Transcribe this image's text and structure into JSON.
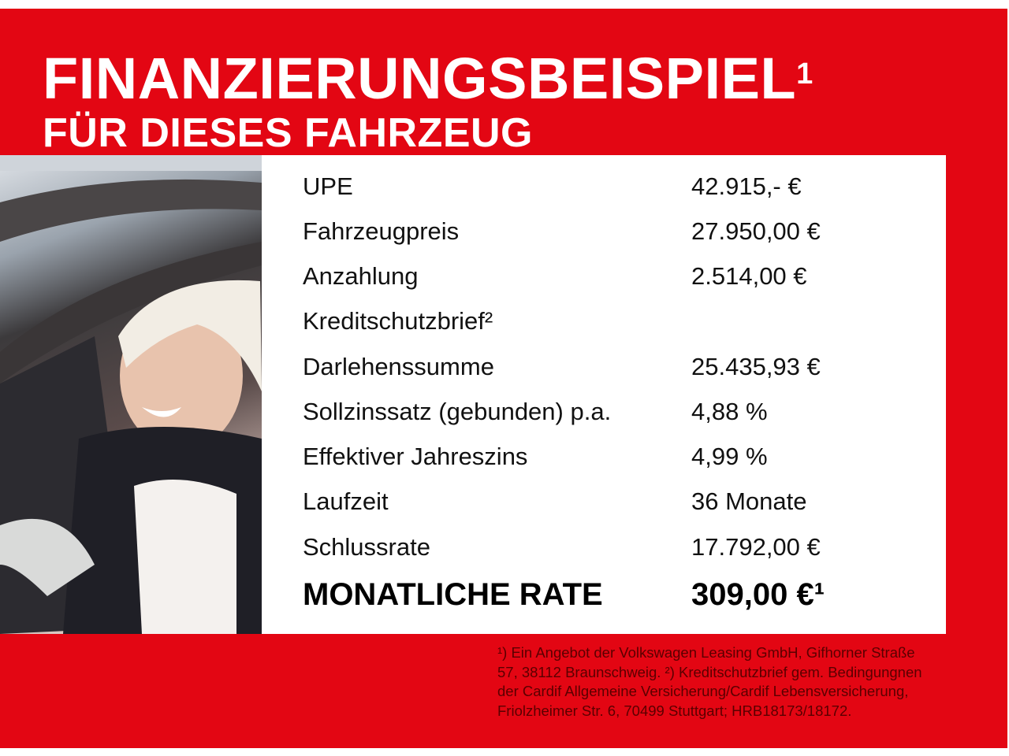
{
  "header": {
    "title": "FINANZIERUNGSBEISPIEL",
    "title_sup": "1",
    "subtitle": "FÜR DIESES FAHRZEUG"
  },
  "rows": [
    {
      "label": "UPE",
      "value": "42.915,- €"
    },
    {
      "label": "Fahrzeugpreis",
      "value": "27.950,00 €"
    },
    {
      "label": "Anzahlung",
      "value": "2.514,00 €"
    },
    {
      "label": "Kreditschutzbrief²",
      "value": ""
    },
    {
      "label": "Darlehenssumme",
      "value": "25.435,93 €"
    },
    {
      "label": "Sollzinssatz (gebunden) p.a.",
      "value": "4,88 %"
    },
    {
      "label": "Effektiver Jahreszins",
      "value": "4,99 %"
    },
    {
      "label": "Laufzeit",
      "value": "36 Monate"
    },
    {
      "label": "Schlussrate",
      "value": "17.792,00 €"
    }
  ],
  "total": {
    "label": "MONATLICHE RATE",
    "value": "309,00 €¹"
  },
  "footnote": "¹) Ein Angebot der Volkswagen Leasing GmbH, Gifhorner Straße 57, 38112 Braunschweig. ²) Kreditschutzbrief gem. Bedingungnen der Cardif Allgemeine Versicherung/Cardif Lebensversicherung, Friolzheimer Str. 6, 70499 Stuttgart; HRB18173/18172.",
  "colors": {
    "brand_red": "#e30613"
  }
}
